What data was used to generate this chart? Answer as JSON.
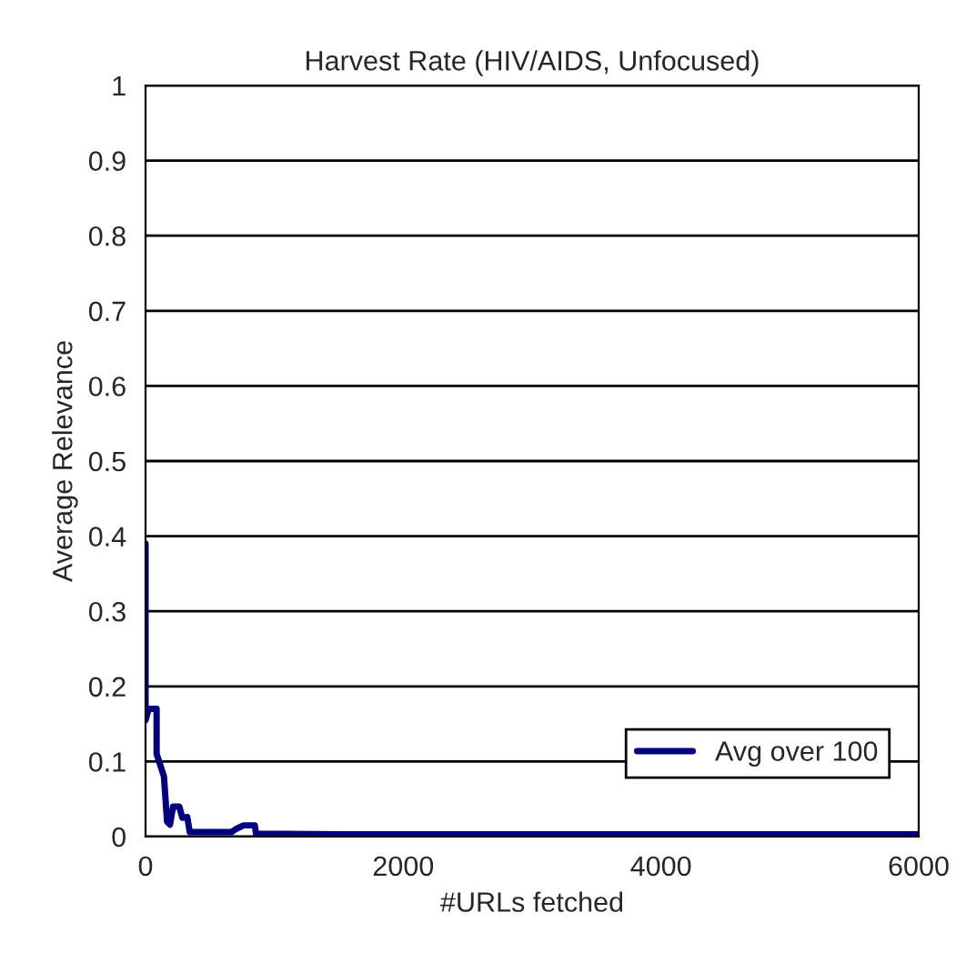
{
  "chart_data": {
    "type": "line",
    "title": "Harvest Rate (HIV/AIDS, Unfocused)",
    "xlabel": "#URLs fetched",
    "ylabel": "Average Relevance",
    "series": [
      {
        "name": "Avg over 100",
        "color": "#000080",
        "x": [
          0,
          0,
          24,
          86,
          86,
          143,
          167,
          190,
          214,
          262,
          286,
          324,
          343,
          667,
          700,
          762,
          848,
          857,
          1500,
          3000,
          6000
        ],
        "values": [
          0.39,
          0.155,
          0.17,
          0.17,
          0.11,
          0.08,
          0.02,
          0.016,
          0.04,
          0.04,
          0.025,
          0.026,
          0.006,
          0.006,
          0.01,
          0.015,
          0.015,
          0.004,
          0.003,
          0.003,
          0.003
        ]
      }
    ],
    "xlim": [
      0,
      6000
    ],
    "xticks": [
      0,
      2000,
      4000,
      6000
    ],
    "ylim": [
      0,
      1
    ],
    "yticks": [
      0,
      0.1,
      0.2,
      0.3,
      0.4,
      0.5,
      0.6,
      0.7,
      0.8,
      0.9,
      1
    ],
    "grid": "y",
    "legend": "bottom right",
    "line_style": "solid",
    "marker": "none"
  }
}
